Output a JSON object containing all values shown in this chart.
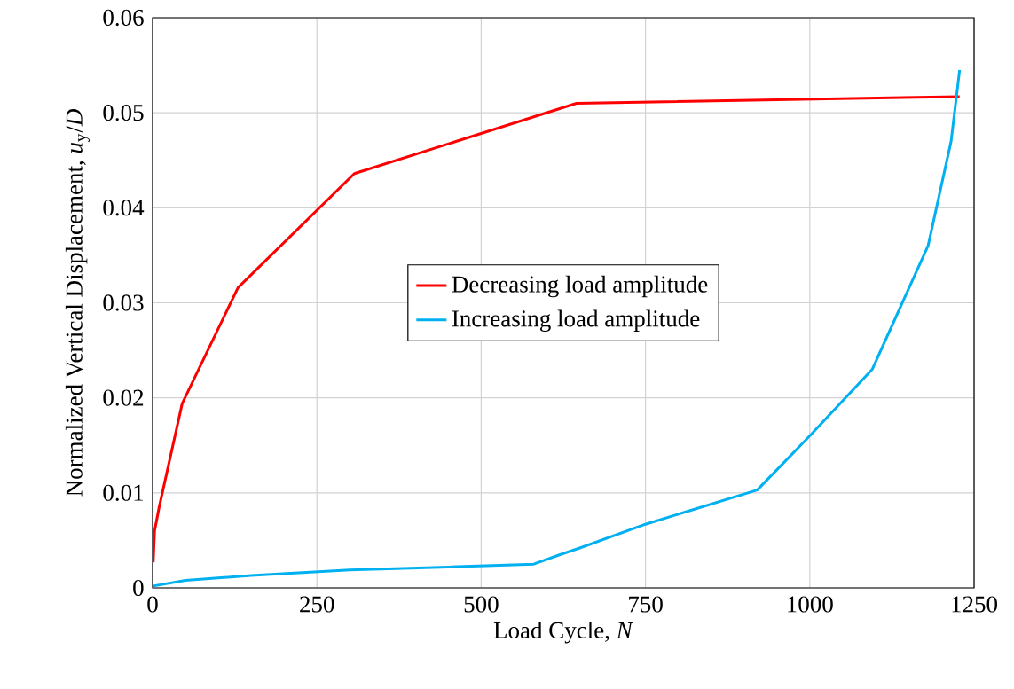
{
  "chart_data": {
    "type": "line",
    "xlabel": "Load Cycle, *N*",
    "ylabel": "Normalized Vertical Displacement, *u*$_{y}$/*D*",
    "xlim": [
      0,
      1250
    ],
    "ylim": [
      0,
      0.06
    ],
    "xticks": [
      0,
      250,
      500,
      750,
      1000,
      1250
    ],
    "yticks": [
      0,
      0.01,
      0.02,
      0.03,
      0.04,
      0.05,
      0.06
    ],
    "grid": true,
    "legend": "center",
    "marker": "none",
    "line_style": "solid",
    "series": [
      {
        "name": "Decreasing load amplitude",
        "color": "#ff0000",
        "x": [
          1,
          3,
          10,
          45,
          130,
          307,
          645,
          1228
        ],
        "values": [
          0.0027,
          0.006,
          0.0085,
          0.0194,
          0.0316,
          0.0436,
          0.051,
          0.0517
        ]
      },
      {
        "name": "Increasing load amplitude",
        "color": "#00b0f0",
        "x": [
          1,
          50,
          150,
          300,
          450,
          580,
          620,
          650,
          750,
          920,
          1000,
          1095,
          1180,
          1215,
          1228
        ],
        "values": [
          0.0002,
          0.0008,
          0.0013,
          0.0019,
          0.0022,
          0.0025,
          0.0035,
          0.0042,
          0.0067,
          0.0103,
          0.016,
          0.023,
          0.036,
          0.047,
          0.0545
        ]
      }
    ]
  }
}
